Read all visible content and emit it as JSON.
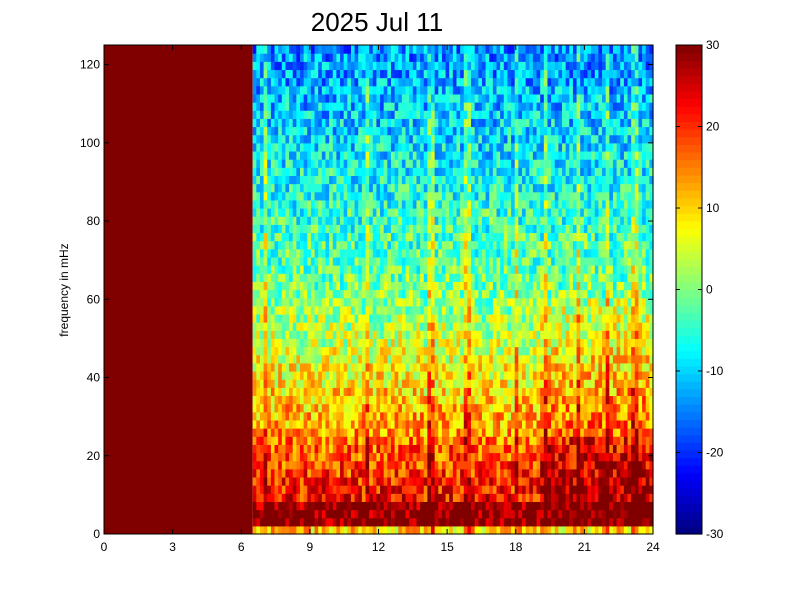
{
  "chart_data": {
    "type": "heatmap",
    "title": "2025 Jul 11",
    "xlabel": "",
    "ylabel": "frequency in mHz",
    "xlim": [
      0,
      24
    ],
    "ylim": [
      0,
      125
    ],
    "xticks": [
      0,
      3,
      6,
      9,
      12,
      15,
      18,
      21,
      24
    ],
    "yticks": [
      0,
      20,
      40,
      60,
      80,
      100,
      120
    ],
    "colorbar": {
      "colormap": "jet",
      "clim": [
        -30,
        30
      ],
      "ticks": [
        -30,
        -20,
        -10,
        0,
        10,
        20,
        30
      ]
    },
    "data_gap": {
      "x_range": [
        0,
        6.5
      ],
      "value": 30
    },
    "description_of_values": {
      "low_frequency_band_0_to_25_mHz": [
        15,
        30
      ],
      "mid_frequency_25_to_60_mHz": [
        0,
        10
      ],
      "high_frequency_60_to_125_mHz": [
        -20,
        0
      ]
    },
    "vertical_streaks_hours": [
      7.0,
      11.5,
      14.3,
      15.9,
      18.0,
      19.3,
      20.8,
      22.0,
      23.2
    ]
  }
}
